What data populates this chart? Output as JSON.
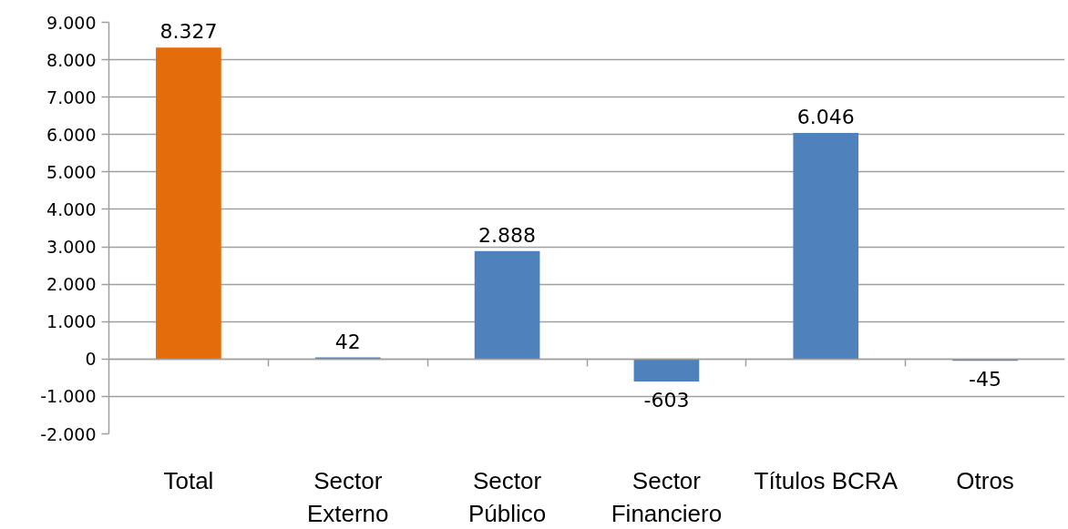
{
  "chart_data": {
    "type": "bar",
    "categories": [
      "Total",
      "Sector Externo",
      "Sector Público",
      "Sector Financiero",
      "Títulos BCRA",
      "Otros"
    ],
    "values": [
      8327,
      42,
      2888,
      -603,
      6046,
      -45
    ],
    "colors": [
      "#e46c0a",
      "#4f81bd",
      "#4f81bd",
      "#4f81bd",
      "#4f81bd",
      "#4f81bd"
    ],
    "value_labels": [
      "8.327",
      "42",
      "2.888",
      "-603",
      "6.046",
      "-45"
    ],
    "ylim": [
      -2000,
      9000
    ],
    "yticks": [
      {
        "value": -2000,
        "label": "-2.000"
      },
      {
        "value": -1000,
        "label": "-1.000"
      },
      0,
      {
        "value": 1000,
        "label": "1.000"
      },
      {
        "value": 2000,
        "label": "2.000"
      },
      {
        "value": 3000,
        "label": "3.000"
      },
      {
        "value": 4000,
        "label": "4.000"
      },
      {
        "value": 5000,
        "label": "5.000"
      },
      {
        "value": 6000,
        "label": "6.000"
      },
      {
        "value": 7000,
        "label": "7.000"
      },
      {
        "value": 8000,
        "label": "8.000"
      },
      {
        "value": 9000,
        "label": "9.000"
      }
    ],
    "grid": "y"
  }
}
